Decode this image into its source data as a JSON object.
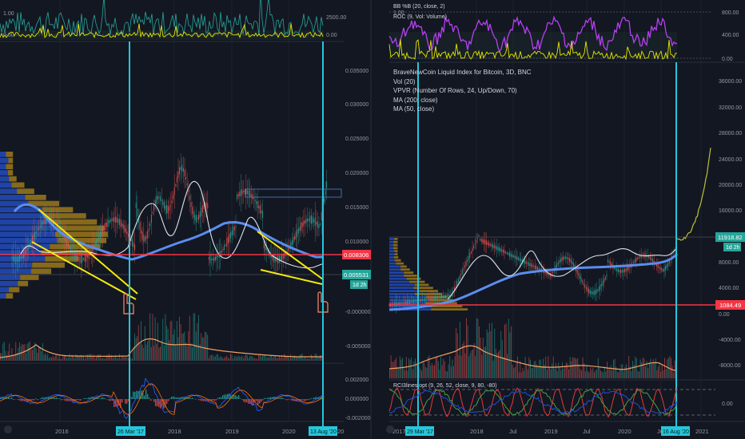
{
  "left_panel": {
    "top_indicator_ticks": [
      "2500.00",
      "0.00",
      "1.00",
      "0.00"
    ],
    "price_ticks": [
      "0.035000",
      "0.030000",
      "0.025000",
      "0.020000",
      "0.015000",
      "0.010000",
      "0.005000",
      "-0.000000",
      "-0.005000"
    ],
    "macd_ticks": [
      "0.002000",
      "0.000000",
      "-0.002000"
    ],
    "x_ticks": [
      "2016",
      "2018",
      "2019",
      "2020",
      "20"
    ],
    "price_label": "0.008306",
    "price_label_color": "#f23645",
    "second_label": "0.005531",
    "countdown": "1d 2h",
    "date_markers": [
      "26 Mar '17",
      "13 Aug '20"
    ],
    "marker_color": "#26c6da"
  },
  "right_panel": {
    "legend": [
      "BraveNewCoin Liquid Index for Bitcoin, 3D, BNC",
      "Vol (20)",
      "VPVR (Number Of Rows, 24, Up/Down, 70)",
      "MA (200, close)",
      "MA (50, close)"
    ],
    "top_indicator_legend": [
      "BB %B (20, close, 2)",
      "ROC (9, Vol: Volume)"
    ],
    "top_indicator_ticks": [
      "800.00",
      "400.00",
      "0.00",
      "1.00"
    ],
    "price_ticks": [
      "36000.00",
      "32000.00",
      "28000.00",
      "24000.00",
      "20000.00",
      "16000.00",
      "8000.00",
      "4000.00",
      "0.00",
      "-4000.00",
      "-8000.00"
    ],
    "rci_legend": "RCI3lines opt (9, 26, 52, close, 9, 80, -80)",
    "rci_ticks": [
      "0.00"
    ],
    "x_ticks": [
      "2017",
      "2018",
      "Jul",
      "2019",
      "Jul",
      "2020",
      "Jul",
      "2021"
    ],
    "price_label": "11918.82",
    "countdown": "1d 2h",
    "support_label": "1084.49",
    "support_color": "#f23645",
    "date_markers": [
      "29 Mar '17",
      "16 Aug '20"
    ],
    "marker_color": "#26c6da"
  },
  "colors": {
    "background": "#131722",
    "ma200": "#5b8dee",
    "ma50": "#e0e3eb",
    "volume_ma": "#f0a060",
    "trendline": "#f5e90c",
    "vpvr_up": "#2962ff",
    "vpvr_down": "#d4a017",
    "bbb": "#b540f2"
  }
}
